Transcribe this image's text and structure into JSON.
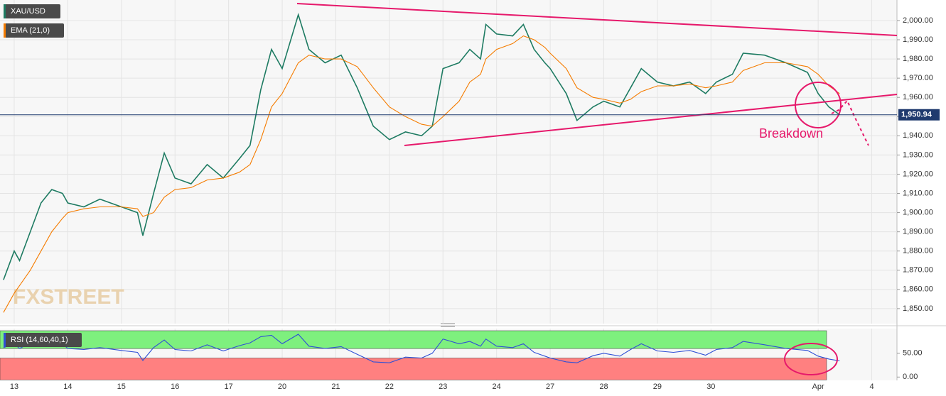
{
  "chart_data": [
    {
      "type": "line",
      "title": "XAU/USD",
      "x": [
        -0.2,
        0,
        0.1,
        0.3,
        0.5,
        0.7,
        0.9,
        1.0,
        1.3,
        1.6,
        2.0,
        2.3,
        2.4,
        2.6,
        2.8,
        3.0,
        3.3,
        3.6,
        3.9,
        4.2,
        4.4,
        4.6,
        4.8,
        5.0,
        5.3,
        5.5,
        5.8,
        6.1,
        6.4,
        6.7,
        7.0,
        7.3,
        7.6,
        7.8,
        8.0,
        8.3,
        8.5,
        8.7,
        8.8,
        9.0,
        9.3,
        9.5,
        9.7,
        9.9,
        10.0,
        10.3,
        10.5,
        10.8,
        11.0,
        11.3,
        11.5,
        11.7,
        12.0,
        12.3,
        12.6,
        12.9,
        13.1,
        13.4,
        13.6,
        14.0,
        14.4,
        14.8,
        15.0,
        15.2,
        15.4
      ],
      "series": [
        {
          "name": "XAU/USD",
          "color": "#1e7b62",
          "values": [
            1865,
            1880,
            1875,
            1890,
            1905,
            1912,
            1910,
            1905,
            1903,
            1907,
            1903,
            1900,
            1888,
            1910,
            1931,
            1918,
            1915,
            1925,
            1918,
            1928,
            1935,
            1964,
            1985,
            1975,
            2003,
            1985,
            1978,
            1982,
            1965,
            1945,
            1938,
            1942,
            1940,
            1945,
            1975,
            1978,
            1985,
            1980,
            1998,
            1993,
            1992,
            1998,
            1985,
            1978,
            1975,
            1962,
            1948,
            1955,
            1958,
            1955,
            1965,
            1975,
            1968,
            1966,
            1968,
            1962,
            1968,
            1972,
            1983,
            1982,
            1978,
            1973,
            1962,
            1955,
            1951
          ]
        },
        {
          "name": "EMA (21,0)",
          "color": "#f57c00",
          "values": [
            1848,
            1858,
            1862,
            1870,
            1880,
            1890,
            1897,
            1900,
            1902,
            1903,
            1903,
            1902,
            1898,
            1900,
            1908,
            1912,
            1913,
            1917,
            1918,
            1921,
            1925,
            1938,
            1955,
            1962,
            1978,
            1982,
            1980,
            1980,
            1976,
            1965,
            1955,
            1950,
            1946,
            1945,
            1950,
            1958,
            1968,
            1972,
            1980,
            1985,
            1988,
            1992,
            1990,
            1986,
            1983,
            1975,
            1965,
            1960,
            1959,
            1957,
            1959,
            1963,
            1966,
            1966,
            1967,
            1965,
            1966,
            1968,
            1974,
            1978,
            1978,
            1976,
            1972,
            1966,
            1962
          ]
        }
      ],
      "xlim": [
        -0.265,
        16.47
      ],
      "xticks": [
        {
          "value": 0,
          "label": "13"
        },
        {
          "value": 1,
          "label": "14"
        },
        {
          "value": 2,
          "label": "15"
        },
        {
          "value": 3,
          "label": "16"
        },
        {
          "value": 4,
          "label": "17"
        },
        {
          "value": 5,
          "label": "20"
        },
        {
          "value": 6,
          "label": "21"
        },
        {
          "value": 7,
          "label": "22"
        },
        {
          "value": 8,
          "label": "23"
        },
        {
          "value": 9,
          "label": "24"
        },
        {
          "value": 10,
          "label": "27"
        },
        {
          "value": 11,
          "label": "28"
        },
        {
          "value": 12,
          "label": "29"
        },
        {
          "value": 13,
          "label": "30"
        },
        {
          "value": 15,
          "label": "Apr"
        },
        {
          "value": 16,
          "label": "4"
        }
      ],
      "ylim": [
        1842.2,
        2010.7
      ],
      "yticks": [
        {
          "value": 1850,
          "label": "1,850.00"
        },
        {
          "value": 1860,
          "label": "1,860.00"
        },
        {
          "value": 1870,
          "label": "1,870.00"
        },
        {
          "value": 1880,
          "label": "1,880.00"
        },
        {
          "value": 1890,
          "label": "1,890.00"
        },
        {
          "value": 1900,
          "label": "1,900.00"
        },
        {
          "value": 1910,
          "label": "1,910.00"
        },
        {
          "value": 1920,
          "label": "1,920.00"
        },
        {
          "value": 1930,
          "label": "1,930.00"
        },
        {
          "value": 1940,
          "label": "1,940.00"
        },
        {
          "value": 1950,
          "label": "1,950.00"
        },
        {
          "value": 1960,
          "label": "1,960.00"
        },
        {
          "value": 1970,
          "label": "1,970.00"
        },
        {
          "value": 1980,
          "label": "1,980.00"
        },
        {
          "value": 1990,
          "label": "1,990.00"
        },
        {
          "value": 2000,
          "label": "2,000.00"
        }
      ],
      "last_price": {
        "value": 1950.94,
        "label": "1,950.94"
      },
      "annotation": "Breakdown",
      "watermark": "FXSTREET",
      "grid": true
    },
    {
      "type": "line",
      "x": [
        -0.2,
        0,
        0.1,
        0.3,
        0.5,
        0.7,
        0.9,
        1.0,
        1.3,
        1.6,
        2.0,
        2.3,
        2.4,
        2.6,
        2.8,
        3.0,
        3.3,
        3.6,
        3.9,
        4.2,
        4.4,
        4.6,
        4.8,
        5.0,
        5.3,
        5.5,
        5.8,
        6.1,
        6.4,
        6.7,
        7.0,
        7.3,
        7.6,
        7.8,
        8.0,
        8.3,
        8.5,
        8.7,
        8.8,
        9.0,
        9.3,
        9.5,
        9.7,
        9.9,
        10.0,
        10.3,
        10.5,
        10.8,
        11.0,
        11.3,
        11.5,
        11.7,
        12.0,
        12.3,
        12.6,
        12.9,
        13.1,
        13.4,
        13.6,
        14.0,
        14.4,
        14.8,
        15.0,
        15.2,
        15.4
      ],
      "series": [
        {
          "name": "RSI (14,60,40,1)",
          "color": "#2f4fd6",
          "values": [
            62,
            70,
            60,
            72,
            80,
            75,
            70,
            60,
            58,
            62,
            56,
            52,
            35,
            62,
            78,
            58,
            55,
            68,
            55,
            66,
            72,
            85,
            88,
            70,
            90,
            65,
            60,
            64,
            48,
            32,
            30,
            42,
            40,
            50,
            80,
            70,
            75,
            65,
            80,
            65,
            62,
            70,
            52,
            44,
            40,
            32,
            30,
            45,
            50,
            44,
            58,
            70,
            55,
            52,
            56,
            46,
            58,
            62,
            75,
            68,
            60,
            56,
            44,
            38,
            34
          ]
        }
      ],
      "ylim": [
        -7,
        102
      ],
      "yticks": [
        {
          "value": 0,
          "label": "0.00"
        },
        {
          "value": 50,
          "label": "50.00"
        }
      ],
      "upper_band": 60,
      "lower_band": 40,
      "band_colors": [
        "#7ef07e",
        "#ff8080"
      ]
    }
  ]
}
